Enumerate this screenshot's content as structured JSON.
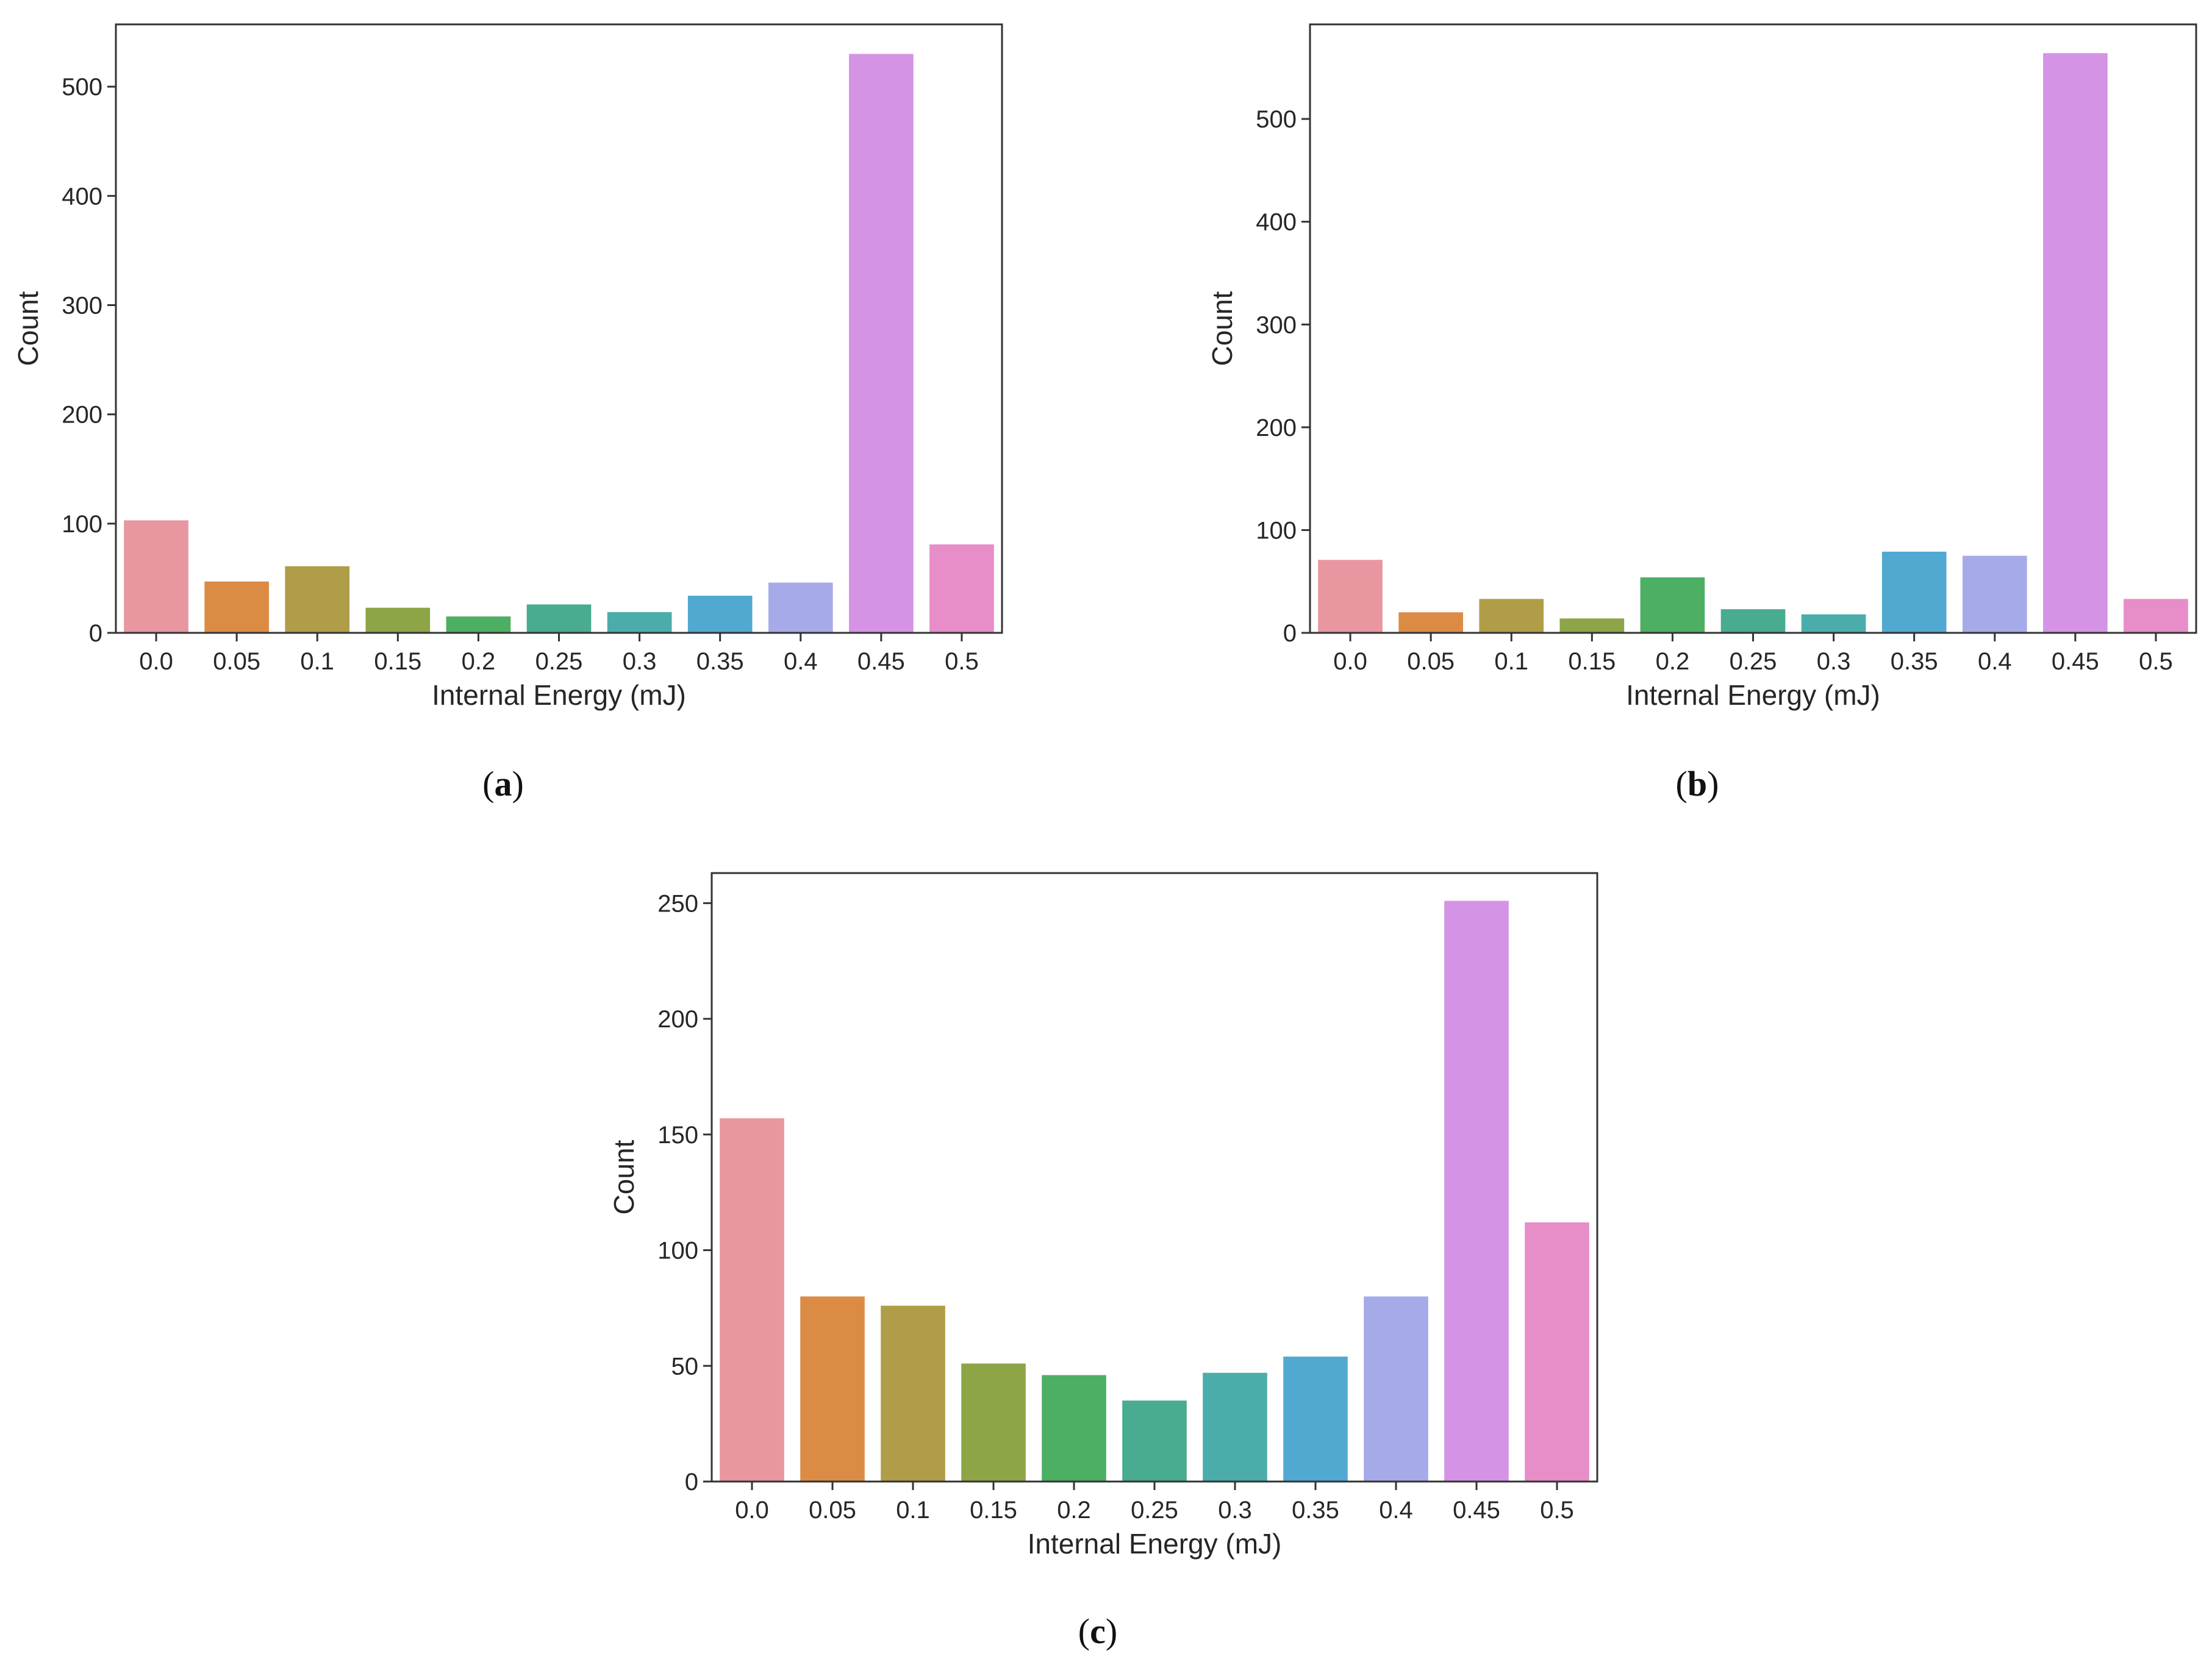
{
  "colors": [
    "#e8969f",
    "#dc8b45",
    "#b09d48",
    "#8da546",
    "#4caf63",
    "#49ab8f",
    "#4bada9",
    "#51a9d1",
    "#a7aae9",
    "#d593e5",
    "#e78dc8"
  ],
  "chart_data": [
    {
      "id": "a",
      "type": "bar",
      "panel_label": "a",
      "xlabel": "Internal Energy (mJ)",
      "ylabel": "Count",
      "categories": [
        "0.0",
        "0.05",
        "0.1",
        "0.15",
        "0.2",
        "0.25",
        "0.3",
        "0.35",
        "0.4",
        "0.45",
        "0.5"
      ],
      "values": [
        103,
        47,
        61,
        23,
        15,
        26,
        19,
        34,
        46,
        530,
        81
      ],
      "ylim": [
        0,
        557
      ],
      "yticks": [
        0,
        100,
        200,
        300,
        400,
        500
      ]
    },
    {
      "id": "b",
      "type": "bar",
      "panel_label": "b",
      "xlabel": "Internal Energy (mJ)",
      "ylabel": "Count",
      "categories": [
        "0.0",
        "0.05",
        "0.1",
        "0.15",
        "0.2",
        "0.25",
        "0.3",
        "0.35",
        "0.4",
        "0.45",
        "0.5"
      ],
      "values": [
        71,
        20,
        33,
        14,
        54,
        23,
        18,
        79,
        75,
        564,
        33
      ],
      "ylim": [
        0,
        592
      ],
      "yticks": [
        0,
        100,
        200,
        300,
        400,
        500
      ]
    },
    {
      "id": "c",
      "type": "bar",
      "panel_label": "c",
      "xlabel": "Internal Energy (mJ)",
      "ylabel": "Count",
      "categories": [
        "0.0",
        "0.05",
        "0.1",
        "0.15",
        "0.2",
        "0.25",
        "0.3",
        "0.35",
        "0.4",
        "0.45",
        "0.5"
      ],
      "values": [
        157,
        80,
        76,
        51,
        46,
        35,
        47,
        54,
        80,
        251,
        112
      ],
      "ylim": [
        0,
        263
      ],
      "yticks": [
        0,
        50,
        100,
        150,
        200,
        250
      ]
    }
  ]
}
